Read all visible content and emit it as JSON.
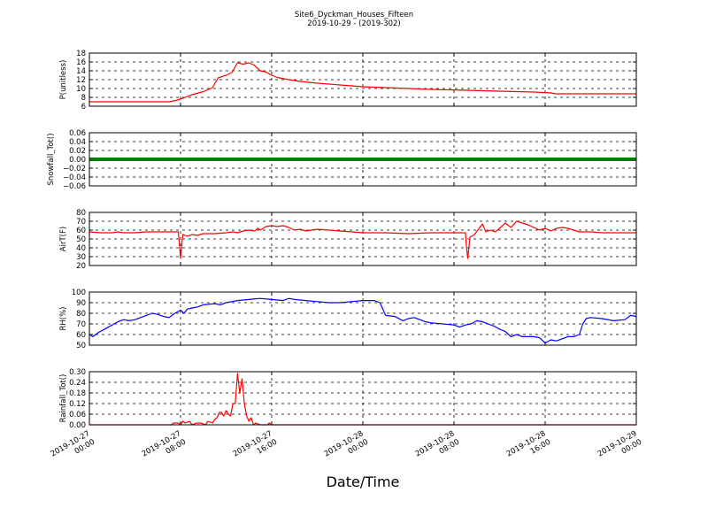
{
  "title": "Site6_Dyckman_Houses_Fifteen",
  "subtitle": "2019-10-29 - (2019-302)",
  "xlabel": "Date/Time",
  "x_ticks": [
    {
      "value": 0,
      "line1": "2019-10-27",
      "line2": "00:00"
    },
    {
      "value": 8,
      "line1": "2019-10-27",
      "line2": "08:00"
    },
    {
      "value": 16,
      "line1": "2019-10-27",
      "line2": "16:00"
    },
    {
      "value": 24,
      "line1": "2019-10-28",
      "line2": "00:00"
    },
    {
      "value": 32,
      "line1": "2019-10-28",
      "line2": "08:00"
    },
    {
      "value": 40,
      "line1": "2019-10-28",
      "line2": "16:00"
    },
    {
      "value": 48,
      "line1": "2019-10-29",
      "line2": "00:00"
    }
  ],
  "chart_data": [
    {
      "type": "line",
      "ylabel": "P(unitless)",
      "ylim": [
        6,
        18
      ],
      "yticks": [
        "6",
        "8",
        "10",
        "12",
        "14",
        "16",
        "18"
      ],
      "color": "#ff0000",
      "grid": true,
      "x_unit": "hours since 2019-10-27 00:00",
      "points": [
        [
          0,
          7
        ],
        [
          4,
          7
        ],
        [
          7,
          7
        ],
        [
          7.6,
          7.3
        ],
        [
          8.2,
          7.8
        ],
        [
          9,
          8.6
        ],
        [
          10,
          9.3
        ],
        [
          10.8,
          10.2
        ],
        [
          11.3,
          12.4
        ],
        [
          12,
          13
        ],
        [
          12.5,
          13.6
        ],
        [
          13,
          15.8
        ],
        [
          13.5,
          15.5
        ],
        [
          14,
          15.8
        ],
        [
          14.5,
          15.2
        ],
        [
          15,
          14
        ],
        [
          15.5,
          13.7
        ],
        [
          16,
          13
        ],
        [
          16.5,
          12.5
        ],
        [
          17.5,
          12
        ],
        [
          18.5,
          11.6
        ],
        [
          20,
          11.2
        ],
        [
          22,
          10.8
        ],
        [
          24,
          10.4
        ],
        [
          27,
          10.1
        ],
        [
          30,
          9.8
        ],
        [
          33,
          9.6
        ],
        [
          36,
          9.4
        ],
        [
          39,
          9.2
        ],
        [
          40.5,
          9
        ],
        [
          41,
          8.8
        ],
        [
          44,
          8.8
        ],
        [
          48,
          8.8
        ]
      ]
    },
    {
      "type": "line",
      "ylabel": "Snowfall_Tot()",
      "ylim": [
        -0.06,
        0.06
      ],
      "yticks": [
        "−0.06",
        "−0.04",
        "−0.02",
        "0.00",
        "0.02",
        "0.04",
        "0.06"
      ],
      "color": "#008000",
      "grid": true,
      "x_unit": "hours since 2019-10-27 00:00",
      "points": [
        [
          0,
          0
        ],
        [
          48,
          0
        ]
      ]
    },
    {
      "type": "line",
      "ylabel": "AirT(F)",
      "ylim": [
        20,
        80
      ],
      "yticks": [
        "20",
        "30",
        "40",
        "50",
        "60",
        "70",
        "80"
      ],
      "color": "#ff0000",
      "grid": true,
      "x_unit": "hours since 2019-10-27 00:00",
      "points": [
        [
          0,
          58
        ],
        [
          1,
          57
        ],
        [
          2,
          57
        ],
        [
          2.5,
          58
        ],
        [
          3,
          57
        ],
        [
          4,
          57
        ],
        [
          5,
          58
        ],
        [
          6,
          58
        ],
        [
          7,
          58
        ],
        [
          7.8,
          58
        ],
        [
          7.9,
          45
        ],
        [
          8,
          28
        ],
        [
          8.2,
          55
        ],
        [
          8.6,
          53
        ],
        [
          9,
          55
        ],
        [
          9.5,
          54
        ],
        [
          10,
          56
        ],
        [
          11,
          56
        ],
        [
          12,
          57
        ],
        [
          12.6,
          58
        ],
        [
          13,
          57
        ],
        [
          13.5,
          59
        ],
        [
          14,
          60
        ],
        [
          14.5,
          59
        ],
        [
          14.8,
          62
        ],
        [
          15,
          60
        ],
        [
          15.5,
          64
        ],
        [
          16,
          65
        ],
        [
          16.5,
          64
        ],
        [
          17,
          65
        ],
        [
          17.5,
          63
        ],
        [
          18,
          60
        ],
        [
          18.5,
          61
        ],
        [
          19,
          59
        ],
        [
          19.5,
          60
        ],
        [
          20,
          61
        ],
        [
          21,
          60
        ],
        [
          22,
          59
        ],
        [
          23,
          58
        ],
        [
          24,
          57
        ],
        [
          26,
          57
        ],
        [
          28,
          56
        ],
        [
          30,
          57
        ],
        [
          32,
          57
        ],
        [
          33,
          57
        ],
        [
          33.1,
          40
        ],
        [
          33.2,
          28
        ],
        [
          33.4,
          52
        ],
        [
          33.8,
          55
        ],
        [
          34.2,
          62
        ],
        [
          34.5,
          67
        ],
        [
          34.8,
          58
        ],
        [
          35.2,
          60
        ],
        [
          35.6,
          58
        ],
        [
          36,
          62
        ],
        [
          36.5,
          68
        ],
        [
          37,
          63
        ],
        [
          37.5,
          70
        ],
        [
          38,
          68
        ],
        [
          38.5,
          66
        ],
        [
          39,
          63
        ],
        [
          39.5,
          60
        ],
        [
          40,
          62
        ],
        [
          40.5,
          59
        ],
        [
          41,
          62
        ],
        [
          41.5,
          63
        ],
        [
          42,
          62
        ],
        [
          42.5,
          60
        ],
        [
          43,
          58
        ],
        [
          44,
          58
        ],
        [
          45,
          57
        ],
        [
          46,
          57
        ],
        [
          47,
          57
        ],
        [
          48,
          57
        ]
      ]
    },
    {
      "type": "line",
      "ylabel": "RH(%)",
      "ylim": [
        50,
        100
      ],
      "yticks": [
        "50",
        "60",
        "70",
        "80",
        "90",
        "100"
      ],
      "color": "#0000ff",
      "grid": true,
      "x_unit": "hours since 2019-10-27 00:00",
      "points": [
        [
          0,
          60
        ],
        [
          0.3,
          58
        ],
        [
          0.8,
          62
        ],
        [
          1.5,
          66
        ],
        [
          2.5,
          72
        ],
        [
          3,
          74
        ],
        [
          3.5,
          73
        ],
        [
          4,
          74
        ],
        [
          4.5,
          76
        ],
        [
          5,
          78
        ],
        [
          5.5,
          80
        ],
        [
          6,
          79
        ],
        [
          6.5,
          77
        ],
        [
          7,
          76
        ],
        [
          7.5,
          80
        ],
        [
          8,
          83
        ],
        [
          8.3,
          80
        ],
        [
          8.6,
          84
        ],
        [
          9,
          85
        ],
        [
          9.5,
          86
        ],
        [
          10,
          88
        ],
        [
          11,
          89
        ],
        [
          11.5,
          88
        ],
        [
          12,
          90
        ],
        [
          12.5,
          91
        ],
        [
          13,
          92
        ],
        [
          14,
          93
        ],
        [
          15,
          94
        ],
        [
          16,
          93
        ],
        [
          17,
          92
        ],
        [
          17.5,
          94
        ],
        [
          18,
          93
        ],
        [
          19,
          92
        ],
        [
          20,
          91
        ],
        [
          21,
          90
        ],
        [
          22,
          90
        ],
        [
          23,
          91
        ],
        [
          24,
          92
        ],
        [
          25,
          92
        ],
        [
          25.5,
          90
        ],
        [
          26,
          78
        ],
        [
          26.8,
          77
        ],
        [
          27,
          76
        ],
        [
          27.5,
          73
        ],
        [
          28,
          75
        ],
        [
          28.5,
          76
        ],
        [
          29,
          74
        ],
        [
          29.5,
          72
        ],
        [
          30,
          71
        ],
        [
          31,
          70
        ],
        [
          32,
          69
        ],
        [
          32.5,
          67
        ],
        [
          33,
          69
        ],
        [
          33.5,
          70
        ],
        [
          34,
          73
        ],
        [
          34.5,
          72
        ],
        [
          35,
          70
        ],
        [
          35.5,
          68
        ],
        [
          36,
          65
        ],
        [
          36.5,
          63
        ],
        [
          37,
          58
        ],
        [
          37.5,
          60
        ],
        [
          38,
          58
        ],
        [
          39,
          58
        ],
        [
          39.5,
          57
        ],
        [
          40,
          52
        ],
        [
          40.5,
          55
        ],
        [
          41,
          54
        ],
        [
          41.5,
          56
        ],
        [
          42,
          58
        ],
        [
          42.5,
          58
        ],
        [
          43,
          60
        ],
        [
          43.3,
          70
        ],
        [
          43.6,
          75
        ],
        [
          44,
          76
        ],
        [
          45,
          75
        ],
        [
          46,
          73
        ],
        [
          47,
          74
        ],
        [
          47.5,
          78
        ],
        [
          48,
          77
        ]
      ]
    },
    {
      "type": "line",
      "ylabel": "Rainfall_Tot()",
      "ylim": [
        0,
        0.3
      ],
      "yticks": [
        "0.00",
        "0.06",
        "0.12",
        "0.18",
        "0.24",
        "0.30"
      ],
      "color": "#ff0000",
      "grid": true,
      "x_unit": "hours since 2019-10-27 00:00",
      "points": [
        [
          0,
          0
        ],
        [
          7.2,
          0
        ],
        [
          7.4,
          0.01
        ],
        [
          7.8,
          0.01
        ],
        [
          8,
          0
        ],
        [
          8.2,
          0.02
        ],
        [
          8.4,
          0.01
        ],
        [
          8.8,
          0.02
        ],
        [
          9,
          0
        ],
        [
          9.4,
          0.01
        ],
        [
          9.8,
          0.01
        ],
        [
          10.2,
          0
        ],
        [
          10.4,
          0.02
        ],
        [
          10.8,
          0.01
        ],
        [
          11,
          0.03
        ],
        [
          11.2,
          0.04
        ],
        [
          11.4,
          0.07
        ],
        [
          11.6,
          0.07
        ],
        [
          11.8,
          0.05
        ],
        [
          12,
          0.08
        ],
        [
          12.2,
          0.06
        ],
        [
          12.4,
          0.05
        ],
        [
          12.6,
          0.12
        ],
        [
          12.8,
          0.12
        ],
        [
          13,
          0.29
        ],
        [
          13.2,
          0.18
        ],
        [
          13.4,
          0.26
        ],
        [
          13.6,
          0.12
        ],
        [
          13.8,
          0.05
        ],
        [
          14,
          0.02
        ],
        [
          14.2,
          0.04
        ],
        [
          14.4,
          0
        ],
        [
          14.6,
          0.01
        ],
        [
          15,
          0
        ],
        [
          15.6,
          0
        ],
        [
          15.8,
          0.01
        ],
        [
          16,
          0
        ],
        [
          48,
          0
        ]
      ]
    }
  ]
}
